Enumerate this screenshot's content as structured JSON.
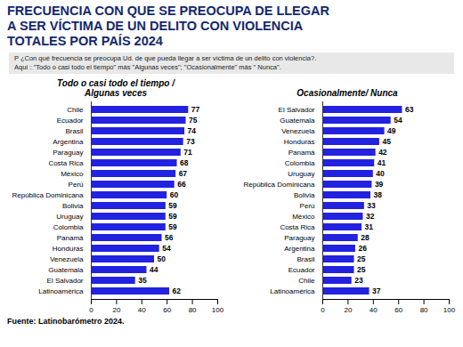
{
  "title": [
    "FRECUENCIA CON QUE SE PREOCUPA DE LLEGAR",
    "A SER VÍCTIMA DE UN DELITO CON VIOLENCIA"
  ],
  "subtitle": "TOTALES POR PAÍS 2024",
  "notes": [
    "P ¿Con qué frecuencia se preocupa Ud. de que pueda llegar a ser víctima de un delito con violencia?.",
    "Aquí : \"Todo o casi todo el tiempo\" más  \"Algunas veces\"; \"Ocasionalmente\" más \" Nunca\"."
  ],
  "source": "Fuente: Latinobarómetro 2024.",
  "chart_data": [
    {
      "type": "bar",
      "orientation": "horizontal",
      "title": [
        "Todo o casi todo el tiempo /",
        "Algunas veces"
      ],
      "categories": [
        "Chile",
        "Ecuador",
        "Brasil",
        "Argentina",
        "Paraguay",
        "Costa Rica",
        "México",
        "Perú",
        "República Dominicana",
        "Bolivia",
        "Uruguay",
        "Colombia",
        "Panamá",
        "Honduras",
        "Venezuela",
        "Guatemala",
        "El Salvador",
        "Latinoamérica"
      ],
      "values": [
        77,
        75,
        74,
        73,
        71,
        68,
        67,
        66,
        60,
        59,
        59,
        59,
        56,
        54,
        50,
        44,
        35,
        62
      ],
      "color": "#2222e0",
      "xlim": [
        0,
        100
      ],
      "xticks": [
        0,
        20,
        40,
        60,
        80,
        100
      ],
      "data_labels": true,
      "grid": false
    },
    {
      "type": "bar",
      "orientation": "horizontal",
      "title": [
        "Ocasionalmente/ Nunca"
      ],
      "categories": [
        "El Salvador",
        "Guatemala",
        "Venezuela",
        "Honduras",
        "Panamá",
        "Colombia",
        "Uruguay",
        "República Dominicana",
        "Bolivia",
        "Perú",
        "México",
        "Costa Rica",
        "Paraguay",
        "Argentina",
        "Brasil",
        "Ecuador",
        "Chile",
        "Latinoamérica"
      ],
      "values": [
        63,
        54,
        49,
        45,
        42,
        41,
        40,
        39,
        38,
        33,
        32,
        31,
        28,
        26,
        25,
        25,
        23,
        37
      ],
      "color": "#2222e0",
      "xlim": [
        0,
        100
      ],
      "xticks": [
        0,
        20,
        40,
        60,
        80,
        100
      ],
      "data_labels": true,
      "grid": false
    }
  ]
}
